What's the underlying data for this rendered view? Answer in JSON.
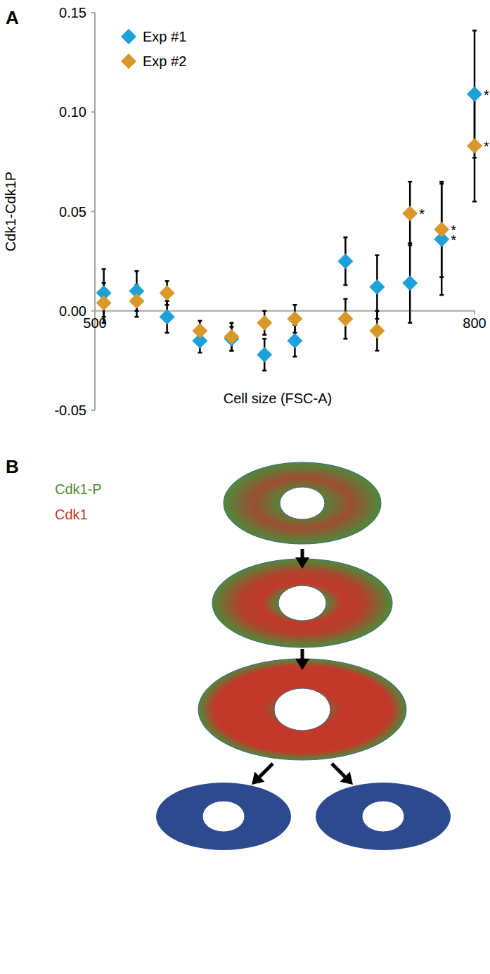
{
  "chart_data": {
    "type": "scatter",
    "title": "A",
    "x_label": "Cell size (FSC-A)",
    "y_label": "Cdk1-Cdk1P",
    "x": [
      507,
      533,
      557,
      583,
      608,
      634,
      658,
      698,
      723,
      749,
      774,
      800
    ],
    "xlim": [
      500,
      800
    ],
    "xticks": [
      500,
      800
    ],
    "ylim": [
      -0.05,
      0.15
    ],
    "yticks": [
      -0.05,
      {
        "value": 0,
        "label": "0.00"
      },
      0.05,
      {
        "value": 0.1,
        "label": "0.10"
      },
      0.15
    ],
    "legend": "top-left",
    "marker": "diamond",
    "grid": false,
    "series": [
      {
        "name": "Exp #1",
        "color": "#1ea0d8",
        "values": [
          0.009,
          0.01,
          -0.003,
          -0.015,
          -0.014,
          -0.022,
          -0.015,
          0.025,
          0.012,
          0.014,
          0.036,
          0.109
        ],
        "errors": [
          0.012,
          0.01,
          0.008,
          0.006,
          0.006,
          0.008,
          0.008,
          0.012,
          0.016,
          0.02,
          0.028,
          0.032
        ],
        "significance": [
          null,
          null,
          null,
          null,
          null,
          null,
          null,
          null,
          null,
          null,
          "*",
          "*"
        ]
      },
      {
        "name": "Exp #2",
        "color": "#d8992a",
        "values": [
          0.004,
          0.005,
          0.009,
          -0.01,
          -0.013,
          -0.006,
          -0.004,
          -0.004,
          -0.01,
          0.049,
          0.041,
          0.083
        ],
        "errors": [
          0.01,
          0.008,
          0.006,
          0.005,
          0.007,
          0.006,
          0.007,
          0.01,
          0.01,
          0.016,
          0.024,
          0.028
        ],
        "significance": [
          null,
          null,
          null,
          null,
          null,
          null,
          null,
          null,
          null,
          "*",
          "*",
          "*"
        ]
      }
    ]
  },
  "diagram": {
    "label": "B",
    "legend": [
      {
        "text": "Cdk1-P",
        "color": "#4e8a3a"
      },
      {
        "text": "Cdk1",
        "color": "#c2392a"
      }
    ]
  }
}
